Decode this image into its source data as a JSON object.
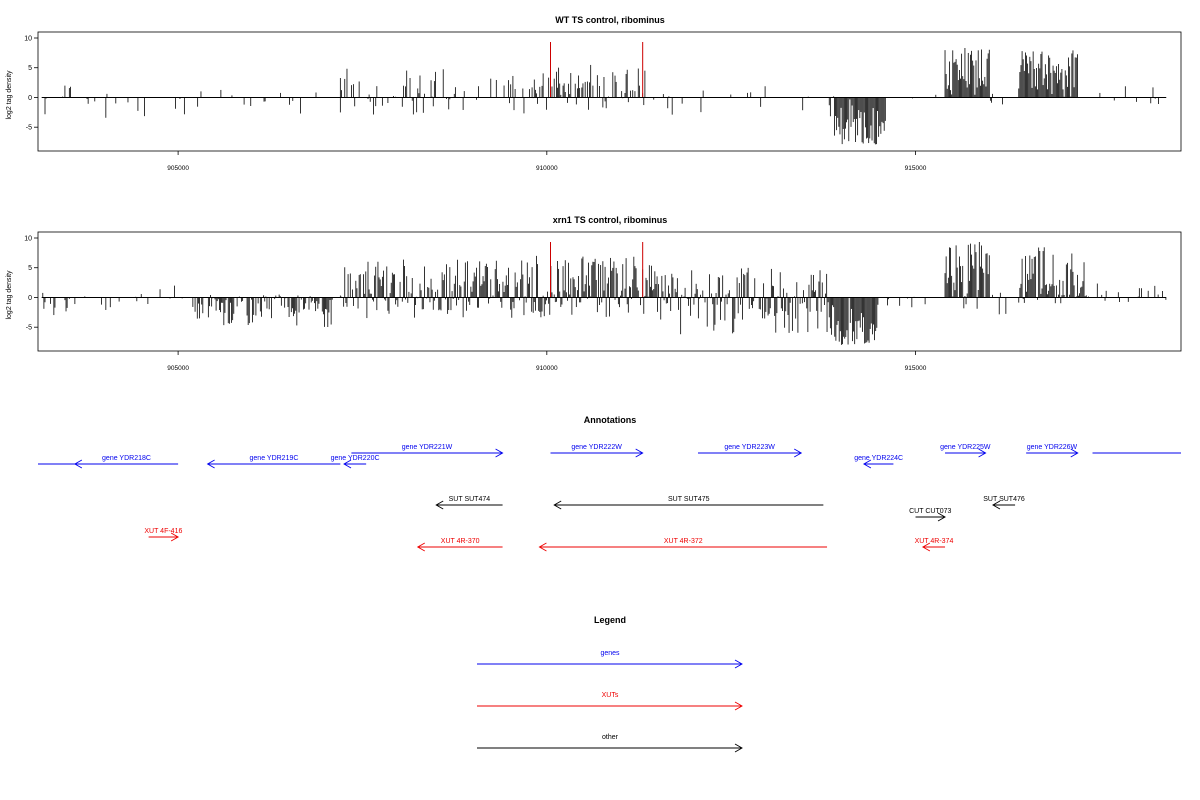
{
  "colors": {
    "gene": "#0000ee",
    "xut": "#ee0000",
    "other": "#000000",
    "marker": "#cc0000",
    "signal": "#000000"
  },
  "chart_data": [
    {
      "type": "bar",
      "title": "WT TS control, ribominus",
      "ylabel": "log2 tag density",
      "xlim": [
        903100,
        918600
      ],
      "ylim": [
        -8.5,
        10
      ],
      "y_ticks": [
        -5,
        0,
        5,
        10
      ],
      "x_ticks": [
        905000,
        910000,
        915000
      ],
      "marker_lines_x": [
        910050,
        911300
      ],
      "signal_regions": [
        {
          "from": 903150,
          "to": 905700,
          "density": 0.12,
          "amp_min": -3.5,
          "amp_max": 2.2,
          "seed": 11
        },
        {
          "from": 905700,
          "to": 907200,
          "density": 0.14,
          "amp_min": -3,
          "amp_max": 1.2,
          "seed": 12
        },
        {
          "from": 907200,
          "to": 909800,
          "density": 0.35,
          "amp_min": -3,
          "amp_max": 5,
          "seed": 13
        },
        {
          "from": 909800,
          "to": 911550,
          "density": 0.55,
          "amp_min": -2.5,
          "amp_max": 5.5,
          "seed": 14
        },
        {
          "from": 911550,
          "to": 913900,
          "density": 0.14,
          "amp_min": -3.5,
          "amp_max": 2,
          "seed": 15
        },
        {
          "from": 913900,
          "to": 914600,
          "density": 1.0,
          "amp_min": -8,
          "amp_max": 0,
          "seed": 16
        },
        {
          "from": 914600,
          "to": 915400,
          "density": 0.05,
          "amp_min": -1.5,
          "amp_max": 1,
          "seed": 17
        },
        {
          "from": 915400,
          "to": 916000,
          "density": 1.0,
          "amp_min": 0,
          "amp_max": 8.5,
          "seed": 18
        },
        {
          "from": 916000,
          "to": 916400,
          "density": 0.1,
          "amp_min": -2,
          "amp_max": 1,
          "seed": 19
        },
        {
          "from": 916400,
          "to": 917200,
          "density": 1.0,
          "amp_min": 0,
          "amp_max": 8,
          "seed": 20
        },
        {
          "from": 917200,
          "to": 918400,
          "density": 0.08,
          "amp_min": -1.5,
          "amp_max": 2,
          "seed": 21
        }
      ]
    },
    {
      "type": "bar",
      "title": "xrn1 TS control, ribominus",
      "ylabel": "log2 tag density",
      "xlim": [
        903100,
        918600
      ],
      "ylim": [
        -8.5,
        10
      ],
      "y_ticks": [
        -5,
        0,
        5,
        10
      ],
      "x_ticks": [
        905000,
        910000,
        915000
      ],
      "marker_lines_x": [
        910050,
        911300
      ],
      "signal_regions": [
        {
          "from": 903150,
          "to": 904500,
          "density": 0.2,
          "amp_min": -3,
          "amp_max": 1,
          "seed": 31
        },
        {
          "from": 904500,
          "to": 905100,
          "density": 0.15,
          "amp_min": -1.5,
          "amp_max": 3,
          "seed": 32
        },
        {
          "from": 905200,
          "to": 907100,
          "density": 0.75,
          "amp_min": -5,
          "amp_max": 0.5,
          "seed": 33
        },
        {
          "from": 907200,
          "to": 909800,
          "density": 0.95,
          "amp_min": -3.5,
          "amp_max": 6.5,
          "seed": 34
        },
        {
          "from": 909800,
          "to": 911500,
          "density": 1.0,
          "amp_min": -3.5,
          "amp_max": 7,
          "seed": 35
        },
        {
          "from": 911500,
          "to": 913800,
          "density": 0.85,
          "amp_min": -6.5,
          "amp_max": 5,
          "seed": 36
        },
        {
          "from": 913800,
          "to": 914500,
          "density": 1.0,
          "amp_min": -8,
          "amp_max": 0,
          "seed": 37
        },
        {
          "from": 914500,
          "to": 915400,
          "density": 0.1,
          "amp_min": -2,
          "amp_max": 1,
          "seed": 38
        },
        {
          "from": 915400,
          "to": 916000,
          "density": 1.0,
          "amp_min": -2,
          "amp_max": 9.5,
          "seed": 39
        },
        {
          "from": 916000,
          "to": 916400,
          "density": 0.2,
          "amp_min": -3,
          "amp_max": 1,
          "seed": 40
        },
        {
          "from": 916400,
          "to": 917300,
          "density": 1.0,
          "amp_min": -1,
          "amp_max": 8.5,
          "seed": 41
        },
        {
          "from": 917300,
          "to": 918400,
          "density": 0.25,
          "amp_min": -1.5,
          "amp_max": 2.5,
          "seed": 42
        }
      ]
    }
  ],
  "annotations": {
    "title": "Annotations",
    "items": [
      {
        "type": "gene",
        "label": "",
        "start": 903100,
        "end": 904000,
        "strand": "none",
        "row": 1
      },
      {
        "type": "gene",
        "label": "gene YDR218C",
        "start": 903600,
        "end": 905000,
        "strand": "-",
        "row": 1
      },
      {
        "type": "gene",
        "label": "gene YDR219C",
        "start": 905400,
        "end": 907200,
        "strand": "-",
        "row": 1
      },
      {
        "type": "gene",
        "label": "gene YDR220C",
        "start": 907250,
        "end": 907550,
        "strand": "-",
        "row": 1
      },
      {
        "type": "gene",
        "label": "gene YDR221W",
        "start": 907350,
        "end": 909400,
        "strand": "+",
        "row": 0
      },
      {
        "type": "gene",
        "label": "gene YDR222W",
        "start": 910050,
        "end": 911300,
        "strand": "+",
        "row": 0
      },
      {
        "type": "gene",
        "label": "gene YDR223W",
        "start": 912050,
        "end": 913450,
        "strand": "+",
        "row": 0
      },
      {
        "type": "gene",
        "label": "gene YDR224C",
        "start": 914300,
        "end": 914700,
        "strand": "-",
        "row": 1
      },
      {
        "type": "gene",
        "label": "gene YDR225W",
        "start": 915400,
        "end": 915950,
        "strand": "+",
        "row": 0
      },
      {
        "type": "gene",
        "label": "gene YDR226W",
        "start": 916500,
        "end": 917200,
        "strand": "+",
        "row": 0
      },
      {
        "type": "gene",
        "label": "",
        "start": 917400,
        "end": 918600,
        "strand": "none",
        "row": 0
      },
      {
        "type": "other",
        "label": "SUT SUT474",
        "start": 908500,
        "end": 909400,
        "strand": "-",
        "row": 2
      },
      {
        "type": "other",
        "label": "SUT SUT475",
        "start": 910100,
        "end": 913750,
        "strand": "-",
        "row": 2
      },
      {
        "type": "other",
        "label": "SUT SUT476",
        "start": 916050,
        "end": 916350,
        "strand": "-",
        "row": 2
      },
      {
        "type": "other",
        "label": "CUT CUT073",
        "start": 915000,
        "end": 915400,
        "strand": "+",
        "row": 3
      },
      {
        "type": "xut",
        "label": "XUT 4F-416",
        "start": 904600,
        "end": 905000,
        "strand": "+",
        "row": 4
      },
      {
        "type": "xut",
        "label": "XUT 4R-370",
        "start": 908250,
        "end": 909400,
        "strand": "-",
        "row": 5
      },
      {
        "type": "xut",
        "label": "XUT 4R-372",
        "start": 909900,
        "end": 913800,
        "strand": "-",
        "row": 5
      },
      {
        "type": "xut",
        "label": "XUT 4R-374",
        "start": 915100,
        "end": 915400,
        "strand": "-",
        "row": 5
      }
    ]
  },
  "legend": {
    "title": "Legend",
    "items": [
      {
        "label": "genes",
        "type": "gene"
      },
      {
        "label": "XUTs",
        "type": "xut"
      },
      {
        "label": "other",
        "type": "other"
      }
    ]
  }
}
